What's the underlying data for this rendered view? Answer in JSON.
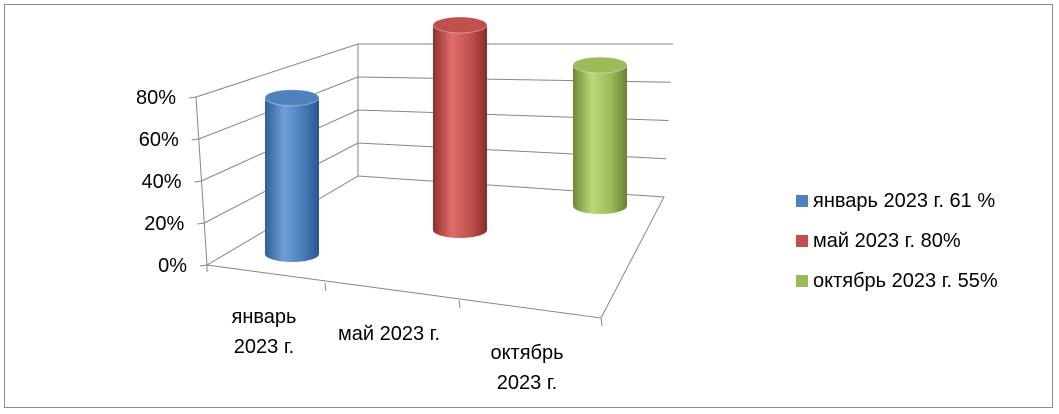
{
  "chart_data": {
    "type": "bar",
    "subtype": "3d-cylinder",
    "title": "",
    "xlabel": "",
    "ylabel": "",
    "categories": [
      [
        "январь",
        "2023 г."
      ],
      [
        "май 2023 г."
      ],
      [
        "октябрь",
        "2023 г."
      ]
    ],
    "values": [
      0.61,
      0.8,
      0.55
    ],
    "colors": [
      "#4f81bd",
      "#c0504d",
      "#9bbb59"
    ],
    "ylim": [
      0,
      0.8
    ],
    "yticks": [
      "0%",
      "20%",
      "40%",
      "60%",
      "80%"
    ],
    "grid": true,
    "legend_position": "right",
    "legend": [
      {
        "label": "январь  2023 г. 61 %",
        "color": "#4f81bd"
      },
      {
        "label": "май 2023 г. 80%",
        "color": "#c0504d"
      },
      {
        "label": "октябрь 2023 г. 55%",
        "color": "#9bbb59"
      }
    ]
  }
}
